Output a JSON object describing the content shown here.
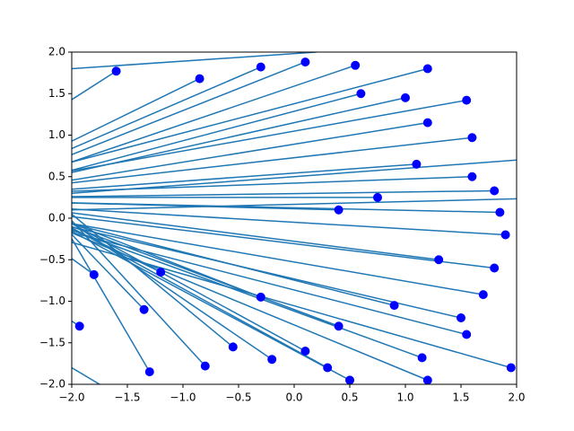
{
  "chart_data": {
    "type": "scatter",
    "xlim": [
      -2,
      2
    ],
    "ylim": [
      -2,
      2
    ],
    "xticks": [
      {
        "value": -2,
        "label": "−2.0"
      },
      {
        "value": -1.5,
        "label": "−1.5"
      },
      {
        "value": -1,
        "label": "−1.0"
      },
      {
        "value": -0.5,
        "label": "−0.5"
      },
      {
        "value": 0,
        "label": "0.0"
      },
      {
        "value": 0.5,
        "label": "0.5"
      },
      {
        "value": 1,
        "label": "1.0"
      },
      {
        "value": 1.5,
        "label": "1.5"
      },
      {
        "value": 2,
        "label": "2.0"
      }
    ],
    "yticks": [
      {
        "value": -2,
        "label": "−2.0"
      },
      {
        "value": -1.5,
        "label": "−1.5"
      },
      {
        "value": -1,
        "label": "−1.0"
      },
      {
        "value": -0.5,
        "label": "−0.5"
      },
      {
        "value": 0,
        "label": "0.0"
      },
      {
        "value": 0.5,
        "label": "0.5"
      },
      {
        "value": 1,
        "label": "1.0"
      },
      {
        "value": 1.5,
        "label": "1.5"
      },
      {
        "value": 2,
        "label": "2.0"
      }
    ],
    "points": {
      "color": "#0000ff",
      "x": [
        1.2,
        1.55,
        1.6,
        1.8,
        1.85,
        1.9,
        1.8,
        1.7,
        1.55,
        1.5,
        1.15,
        1.2,
        0.5,
        0.3,
        0.1,
        -0.2,
        -0.55,
        -0.8,
        -1.3,
        -1.35,
        -1.2,
        -1.8,
        -1.93,
        -1.6,
        -0.85,
        -0.3,
        0.1,
        0.55,
        0.6,
        1.0,
        1.2,
        1.1,
        0.75,
        0.4,
        1.3,
        0.9,
        0.4,
        -0.3,
        1.95,
        1.6
      ],
      "y": [
        1.8,
        1.42,
        0.97,
        0.33,
        0.07,
        -0.2,
        -0.6,
        -0.92,
        -1.4,
        -1.2,
        -1.68,
        -1.95,
        -1.95,
        -1.8,
        -1.6,
        -1.7,
        -1.55,
        -1.78,
        -1.85,
        -1.1,
        -0.65,
        -0.68,
        -1.3,
        1.77,
        1.68,
        1.82,
        1.88,
        1.84,
        1.5,
        1.45,
        1.15,
        0.65,
        0.25,
        0.1,
        -0.5,
        -1.05,
        -1.3,
        -0.95,
        -1.8,
        0.5
      ]
    },
    "lines": {
      "color": "#1f77b4",
      "x0": [
        1.2,
        1.55,
        1.6,
        1.8,
        1.85,
        1.9,
        1.8,
        1.7,
        1.55,
        1.5,
        1.15,
        1.2,
        0.5,
        0.3,
        0.1,
        -0.2,
        -0.55,
        -0.8,
        -1.3,
        -1.35,
        -1.2,
        -1.8,
        -1.93,
        -1.6,
        -0.85,
        -0.3,
        0.1,
        0.55,
        0.6,
        1.0,
        1.2,
        1.1,
        0.75,
        0.4,
        1.3,
        0.9,
        0.4,
        -0.3,
        1.95,
        1.6,
        -2.0,
        -2.0,
        -2.0,
        -2.0
      ],
      "y0": [
        1.8,
        1.42,
        0.97,
        0.33,
        0.07,
        -0.2,
        -0.6,
        -0.92,
        -1.4,
        -1.2,
        -1.68,
        -1.95,
        -1.95,
        -1.8,
        -1.6,
        -1.7,
        -1.55,
        -1.78,
        -1.85,
        -1.1,
        -0.65,
        -0.68,
        -1.3,
        1.77,
        1.68,
        1.82,
        1.88,
        1.84,
        1.5,
        1.45,
        1.15,
        0.65,
        0.25,
        0.1,
        -0.5,
        -1.05,
        -1.3,
        -0.95,
        -1.8,
        0.5,
        0.3,
        0.1,
        1.8,
        -1.8
      ],
      "x1": [
        -2.5,
        -2.5,
        -2.5,
        -2.5,
        -2.5,
        -2.5,
        -2.5,
        -2.5,
        -2.5,
        -2.5,
        -2.5,
        -2.5,
        -2.5,
        -2.5,
        -2.5,
        -2.5,
        -2.5,
        -2.5,
        -2.5,
        -2.5,
        -2.5,
        -2.5,
        -2.5,
        -2.5,
        -2.5,
        -2.5,
        -2.5,
        -2.5,
        -2.5,
        -2.5,
        -2.5,
        -2.5,
        -2.5,
        -2.5,
        -2.5,
        -2.5,
        -2.5,
        -2.5,
        -2.5,
        -2.5,
        2.5,
        2.5,
        0.2,
        -1.5
      ],
      "y1": [
        0.5,
        0.45,
        0.35,
        0.25,
        0.2,
        0.15,
        0.1,
        0.05,
        0.0,
        0.05,
        0.1,
        0.1,
        0.2,
        0.25,
        0.3,
        0.4,
        0.6,
        0.7,
        0.9,
        0.5,
        0.2,
        0.0,
        -0.8,
        1.0,
        0.6,
        0.55,
        0.5,
        0.45,
        0.4,
        0.4,
        0.35,
        0.3,
        0.25,
        0.2,
        0.15,
        0.1,
        0.15,
        0.2,
        -0.1,
        0.3,
        0.75,
        0.25,
        2.0,
        -2.2
      ]
    }
  }
}
